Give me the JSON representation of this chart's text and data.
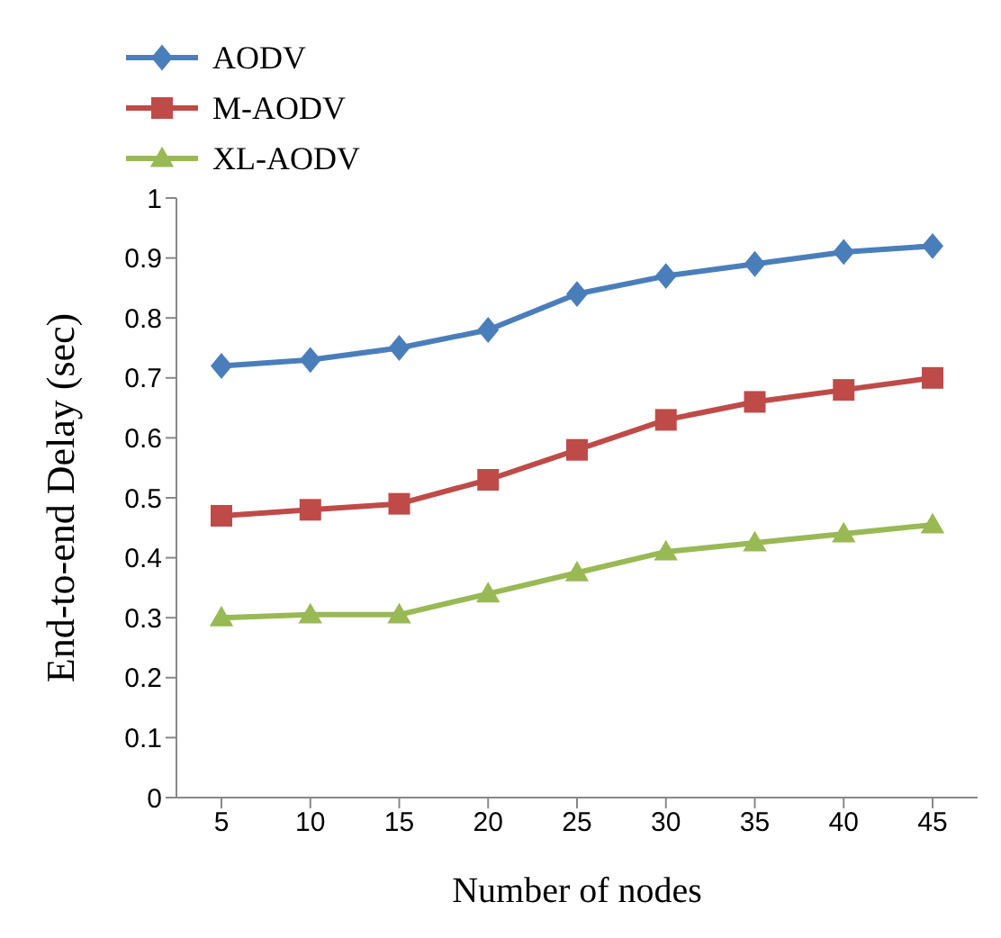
{
  "chart_data": {
    "type": "line",
    "xlabel": "Number of nodes",
    "ylabel": "End-to-end Delay (sec)",
    "categories": [
      "5",
      "10",
      "15",
      "20",
      "25",
      "30",
      "35",
      "40",
      "45"
    ],
    "ylim": [
      0,
      1
    ],
    "yticks": [
      0,
      0.1,
      0.2,
      0.3,
      0.4,
      0.5,
      0.6,
      0.7,
      0.8,
      0.9,
      1
    ],
    "grid": false,
    "legend": "top",
    "line_style": "solid",
    "series": [
      {
        "name": "AODV",
        "color": "#4a7ebb",
        "marker": "diamond",
        "values": [
          0.72,
          0.73,
          0.75,
          0.78,
          0.84,
          0.87,
          0.89,
          0.91,
          0.92
        ]
      },
      {
        "name": "M-AODV",
        "color": "#be4b48",
        "marker": "square",
        "values": [
          0.47,
          0.48,
          0.49,
          0.53,
          0.58,
          0.63,
          0.66,
          0.68,
          0.7
        ]
      },
      {
        "name": "XL-AODV",
        "color": "#98b954",
        "marker": "triangle",
        "values": [
          0.3,
          0.305,
          0.305,
          0.34,
          0.375,
          0.41,
          0.425,
          0.44,
          0.455
        ]
      }
    ]
  }
}
